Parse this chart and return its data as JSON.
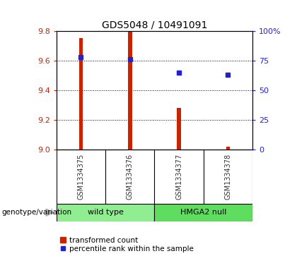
{
  "title": "GDS5048 / 10491091",
  "samples": [
    "GSM1334375",
    "GSM1334376",
    "GSM1334377",
    "GSM1334378"
  ],
  "bar_values": [
    9.75,
    9.8,
    9.28,
    9.02
  ],
  "bar_base": 9.0,
  "percentile_values": [
    78,
    76,
    65,
    63
  ],
  "ymin": 9.0,
  "ymax": 9.8,
  "yticks": [
    9.0,
    9.2,
    9.4,
    9.6,
    9.8
  ],
  "right_yticks": [
    0,
    25,
    50,
    75,
    100
  ],
  "right_ytick_labels": [
    "0",
    "25",
    "50",
    "75",
    "100%"
  ],
  "bar_color": "#cc2200",
  "dot_color": "#2222cc",
  "groups": [
    {
      "label": "wild type",
      "color": "#90ee90"
    },
    {
      "label": "HMGA2 null",
      "color": "#5fdd5f"
    }
  ],
  "group_label_prefix": "genotype/variation",
  "legend_bar_label": "transformed count",
  "legend_dot_label": "percentile rank within the sample",
  "title_fontsize": 10,
  "tick_fontsize": 8,
  "label_fontsize": 8,
  "background_color": "#ffffff",
  "plot_bg": "#ffffff",
  "grid_color": "#000000",
  "left_tick_color": "#cc2200",
  "right_tick_color": "#2222cc",
  "bar_width": 0.08,
  "sample_label_color": "#333333",
  "sample_area_color": "#cccccc"
}
